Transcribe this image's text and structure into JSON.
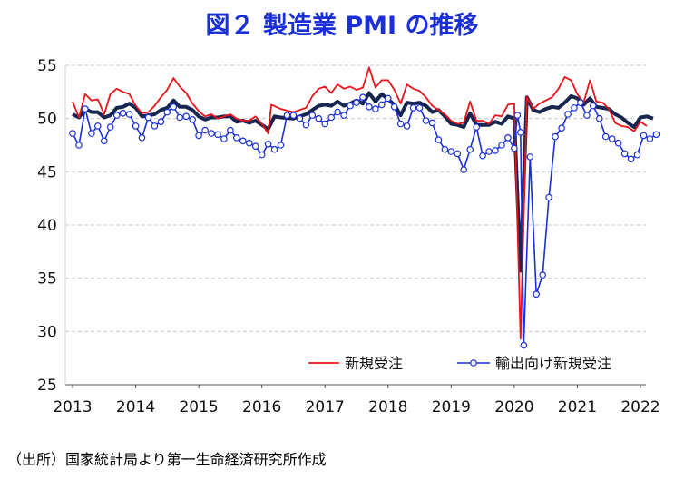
{
  "title": "図２ 製造業 PMI の推移",
  "source": "（出所）国家統計局より第一生命経済研究所作成",
  "chart_data": {
    "type": "line",
    "title": "図２ 製造業 PMI の推移",
    "ylim": [
      25,
      55
    ],
    "yticks": [
      25,
      30,
      35,
      40,
      45,
      50,
      55
    ],
    "xlim": [
      2013,
      2022
    ],
    "xticks": [
      2013,
      2014,
      2015,
      2016,
      2017,
      2018,
      2019,
      2020,
      2021,
      2022
    ],
    "grid": "horizontal dashed",
    "legend_position": "bottom-right",
    "series": [
      {
        "name": "新規受注",
        "color": "#e8141a",
        "values": [
          [
            2013.0,
            51.6
          ],
          [
            2013.1,
            50.1
          ],
          [
            2013.2,
            52.3
          ],
          [
            2013.3,
            51.7
          ],
          [
            2013.4,
            51.8
          ],
          [
            2013.5,
            50.4
          ],
          [
            2013.6,
            52.3
          ],
          [
            2013.7,
            52.8
          ],
          [
            2013.8,
            52.5
          ],
          [
            2013.9,
            52.3
          ],
          [
            2014.0,
            51.2
          ],
          [
            2014.1,
            50.5
          ],
          [
            2014.2,
            50.6
          ],
          [
            2014.3,
            51.2
          ],
          [
            2014.4,
            52.0
          ],
          [
            2014.5,
            52.7
          ],
          [
            2014.6,
            53.8
          ],
          [
            2014.7,
            53.0
          ],
          [
            2014.8,
            52.4
          ],
          [
            2014.9,
            51.4
          ],
          [
            2015.0,
            50.7
          ],
          [
            2015.1,
            50.2
          ],
          [
            2015.2,
            50.4
          ],
          [
            2015.3,
            50.0
          ],
          [
            2015.4,
            50.2
          ],
          [
            2015.5,
            50.4
          ],
          [
            2015.6,
            50.0
          ],
          [
            2015.7,
            49.8
          ],
          [
            2015.8,
            49.8
          ],
          [
            2015.9,
            50.2
          ],
          [
            2016.0,
            49.5
          ],
          [
            2016.1,
            48.6
          ],
          [
            2016.15,
            51.3
          ],
          [
            2016.3,
            50.9
          ],
          [
            2016.5,
            50.6
          ],
          [
            2016.7,
            51.0
          ],
          [
            2016.8,
            52.1
          ],
          [
            2016.9,
            52.8
          ],
          [
            2017.0,
            53.0
          ],
          [
            2017.1,
            52.4
          ],
          [
            2017.2,
            53.2
          ],
          [
            2017.3,
            52.8
          ],
          [
            2017.4,
            53.0
          ],
          [
            2017.5,
            52.7
          ],
          [
            2017.6,
            52.9
          ],
          [
            2017.7,
            54.8
          ],
          [
            2017.8,
            52.9
          ],
          [
            2017.9,
            53.6
          ],
          [
            2018.0,
            53.6
          ],
          [
            2018.1,
            52.7
          ],
          [
            2018.2,
            51.4
          ],
          [
            2018.3,
            53.2
          ],
          [
            2018.4,
            52.8
          ],
          [
            2018.5,
            52.6
          ],
          [
            2018.6,
            52.0
          ],
          [
            2018.7,
            51.2
          ],
          [
            2018.8,
            50.8
          ],
          [
            2018.9,
            50.4
          ],
          [
            2019.0,
            49.8
          ],
          [
            2019.1,
            49.5
          ],
          [
            2019.2,
            49.6
          ],
          [
            2019.3,
            51.6
          ],
          [
            2019.4,
            49.8
          ],
          [
            2019.5,
            49.8
          ],
          [
            2019.6,
            49.5
          ],
          [
            2019.7,
            50.3
          ],
          [
            2019.8,
            50.2
          ],
          [
            2019.9,
            51.3
          ],
          [
            2020.0,
            51.4
          ],
          [
            2020.1,
            29.3
          ],
          [
            2020.2,
            52.0
          ],
          [
            2020.3,
            50.9
          ],
          [
            2020.4,
            51.4
          ],
          [
            2020.5,
            51.7
          ],
          [
            2020.6,
            52.0
          ],
          [
            2020.7,
            52.8
          ],
          [
            2020.8,
            53.9
          ],
          [
            2020.9,
            53.6
          ],
          [
            2021.0,
            52.3
          ],
          [
            2021.1,
            51.5
          ],
          [
            2021.2,
            53.6
          ],
          [
            2021.3,
            51.6
          ],
          [
            2021.4,
            51.5
          ],
          [
            2021.5,
            50.9
          ],
          [
            2021.6,
            49.6
          ],
          [
            2021.7,
            49.3
          ],
          [
            2021.8,
            49.2
          ],
          [
            2021.9,
            48.8
          ],
          [
            2022.0,
            49.7
          ],
          [
            2022.1,
            49.3
          ]
        ]
      },
      {
        "name": "輸出向け新規受注",
        "color": "#1a2fd6",
        "values": [
          [
            2013.0,
            48.6
          ],
          [
            2013.1,
            47.5
          ],
          [
            2013.2,
            50.9
          ],
          [
            2013.3,
            48.6
          ],
          [
            2013.4,
            49.3
          ],
          [
            2013.5,
            47.9
          ],
          [
            2013.6,
            49.2
          ],
          [
            2013.7,
            50.3
          ],
          [
            2013.8,
            50.5
          ],
          [
            2013.9,
            50.4
          ],
          [
            2014.0,
            49.3
          ],
          [
            2014.1,
            48.2
          ],
          [
            2014.2,
            50.1
          ],
          [
            2014.3,
            49.3
          ],
          [
            2014.4,
            49.7
          ],
          [
            2014.5,
            50.6
          ],
          [
            2014.6,
            51.1
          ],
          [
            2014.7,
            50.1
          ],
          [
            2014.8,
            50.2
          ],
          [
            2014.9,
            49.9
          ],
          [
            2015.0,
            48.4
          ],
          [
            2015.1,
            48.9
          ],
          [
            2015.2,
            48.6
          ],
          [
            2015.3,
            48.5
          ],
          [
            2015.4,
            48.1
          ],
          [
            2015.5,
            48.9
          ],
          [
            2015.6,
            48.2
          ],
          [
            2015.7,
            47.9
          ],
          [
            2015.8,
            47.7
          ],
          [
            2015.9,
            47.4
          ],
          [
            2016.0,
            46.6
          ],
          [
            2016.1,
            47.6
          ],
          [
            2016.2,
            47.1
          ],
          [
            2016.3,
            47.5
          ],
          [
            2016.4,
            50.3
          ],
          [
            2016.5,
            50.3
          ],
          [
            2016.6,
            50.0
          ],
          [
            2016.7,
            49.4
          ],
          [
            2016.8,
            50.3
          ],
          [
            2016.9,
            50.0
          ],
          [
            2017.0,
            49.5
          ],
          [
            2017.1,
            50.1
          ],
          [
            2017.2,
            50.6
          ],
          [
            2017.3,
            50.3
          ],
          [
            2017.4,
            51.2
          ],
          [
            2017.5,
            51.5
          ],
          [
            2017.6,
            52.0
          ],
          [
            2017.7,
            51.1
          ],
          [
            2017.8,
            50.9
          ],
          [
            2017.9,
            51.3
          ],
          [
            2018.0,
            51.9
          ],
          [
            2018.1,
            51.1
          ],
          [
            2018.2,
            49.5
          ],
          [
            2018.3,
            49.3
          ],
          [
            2018.4,
            51.0
          ],
          [
            2018.5,
            51.0
          ],
          [
            2018.6,
            49.8
          ],
          [
            2018.7,
            49.6
          ],
          [
            2018.8,
            48.0
          ],
          [
            2018.9,
            47.1
          ],
          [
            2019.0,
            46.9
          ],
          [
            2019.1,
            46.7
          ],
          [
            2019.2,
            45.2
          ],
          [
            2019.3,
            47.1
          ],
          [
            2019.4,
            49.2
          ],
          [
            2019.5,
            46.5
          ],
          [
            2019.6,
            46.9
          ],
          [
            2019.7,
            47.0
          ],
          [
            2019.8,
            47.5
          ],
          [
            2019.9,
            48.2
          ],
          [
            2020.0,
            47.2
          ],
          [
            2020.05,
            50.3
          ],
          [
            2020.1,
            48.7
          ],
          [
            2020.15,
            28.7
          ],
          [
            2020.25,
            46.4
          ],
          [
            2020.35,
            33.5
          ],
          [
            2020.45,
            35.3
          ],
          [
            2020.55,
            42.6
          ],
          [
            2020.65,
            48.3
          ],
          [
            2020.75,
            49.1
          ],
          [
            2020.85,
            50.4
          ],
          [
            2020.95,
            51.0
          ],
          [
            2021.05,
            51.5
          ],
          [
            2021.15,
            50.3
          ],
          [
            2021.25,
            51.2
          ],
          [
            2021.35,
            50.0
          ],
          [
            2021.45,
            48.3
          ],
          [
            2021.55,
            48.1
          ],
          [
            2021.65,
            47.7
          ],
          [
            2021.75,
            46.7
          ],
          [
            2021.85,
            46.2
          ],
          [
            2021.95,
            46.6
          ],
          [
            2022.05,
            48.4
          ],
          [
            2022.15,
            48.1
          ],
          [
            2022.25,
            48.5
          ]
        ]
      },
      {
        "color": "#16264f",
        "values": [
          [
            2013.0,
            50.4
          ],
          [
            2013.1,
            50.1
          ],
          [
            2013.2,
            50.9
          ],
          [
            2013.3,
            50.6
          ],
          [
            2013.4,
            50.6
          ],
          [
            2013.5,
            50.1
          ],
          [
            2013.6,
            50.3
          ],
          [
            2013.7,
            51.0
          ],
          [
            2013.8,
            51.1
          ],
          [
            2013.9,
            51.4
          ],
          [
            2014.0,
            51.0
          ],
          [
            2014.1,
            50.2
          ],
          [
            2014.2,
            50.3
          ],
          [
            2014.3,
            50.4
          ],
          [
            2014.4,
            50.8
          ],
          [
            2014.5,
            51.0
          ],
          [
            2014.6,
            51.7
          ],
          [
            2014.7,
            51.1
          ],
          [
            2014.8,
            51.1
          ],
          [
            2014.9,
            50.8
          ],
          [
            2015.0,
            50.2
          ],
          [
            2015.1,
            49.9
          ],
          [
            2015.2,
            50.1
          ],
          [
            2015.3,
            50.1
          ],
          [
            2015.4,
            50.2
          ],
          [
            2015.5,
            50.2
          ],
          [
            2015.6,
            49.7
          ],
          [
            2015.7,
            49.8
          ],
          [
            2015.8,
            49.6
          ],
          [
            2015.9,
            49.8
          ],
          [
            2016.0,
            49.4
          ],
          [
            2016.1,
            49.0
          ],
          [
            2016.2,
            50.2
          ],
          [
            2016.3,
            50.1
          ],
          [
            2016.5,
            50.0
          ],
          [
            2016.7,
            50.4
          ],
          [
            2016.8,
            50.8
          ],
          [
            2016.9,
            51.2
          ],
          [
            2017.0,
            51.3
          ],
          [
            2017.1,
            51.2
          ],
          [
            2017.2,
            51.6
          ],
          [
            2017.3,
            51.2
          ],
          [
            2017.4,
            51.4
          ],
          [
            2017.5,
            51.7
          ],
          [
            2017.6,
            51.4
          ],
          [
            2017.7,
            52.4
          ],
          [
            2017.8,
            51.6
          ],
          [
            2017.9,
            52.3
          ],
          [
            2018.0,
            51.8
          ],
          [
            2018.1,
            51.3
          ],
          [
            2018.2,
            50.3
          ],
          [
            2018.3,
            51.5
          ],
          [
            2018.4,
            51.4
          ],
          [
            2018.5,
            51.5
          ],
          [
            2018.6,
            51.2
          ],
          [
            2018.7,
            50.6
          ],
          [
            2018.8,
            50.8
          ],
          [
            2018.9,
            50.2
          ],
          [
            2019.0,
            49.5
          ],
          [
            2019.1,
            49.4
          ],
          [
            2019.2,
            49.2
          ],
          [
            2019.3,
            50.5
          ],
          [
            2019.4,
            49.4
          ],
          [
            2019.5,
            49.4
          ],
          [
            2019.6,
            49.4
          ],
          [
            2019.7,
            49.7
          ],
          [
            2019.8,
            49.5
          ],
          [
            2019.9,
            50.2
          ],
          [
            2020.0,
            50.0
          ],
          [
            2020.1,
            35.7
          ],
          [
            2020.2,
            52.0
          ],
          [
            2020.3,
            50.8
          ],
          [
            2020.4,
            50.6
          ],
          [
            2020.5,
            50.9
          ],
          [
            2020.6,
            51.1
          ],
          [
            2020.7,
            51.0
          ],
          [
            2020.8,
            51.5
          ],
          [
            2020.9,
            52.1
          ],
          [
            2021.0,
            51.9
          ],
          [
            2021.1,
            51.3
          ],
          [
            2021.2,
            51.9
          ],
          [
            2021.3,
            51.1
          ],
          [
            2021.4,
            51.0
          ],
          [
            2021.5,
            50.9
          ],
          [
            2021.6,
            50.4
          ],
          [
            2021.7,
            50.1
          ],
          [
            2021.8,
            49.6
          ],
          [
            2021.9,
            49.2
          ],
          [
            2022.0,
            50.1
          ],
          [
            2022.1,
            50.2
          ],
          [
            2022.2,
            50.0
          ]
        ]
      }
    ]
  }
}
